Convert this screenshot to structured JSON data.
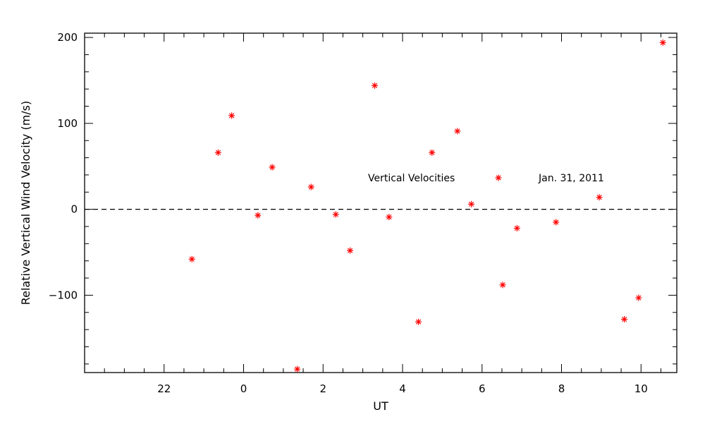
{
  "chart_data": {
    "type": "scatter",
    "title": "",
    "xlabel": "UT",
    "ylabel": "Relative Vertical Wind Velocity (m/s)",
    "xlim": [
      -2.0,
      12.9
    ],
    "ylim": [
      -190,
      205
    ],
    "x_ticks": [
      {
        "value": 0,
        "label": "22"
      },
      {
        "value": 2,
        "label": "0"
      },
      {
        "value": 4,
        "label": "2"
      },
      {
        "value": 6,
        "label": "4"
      },
      {
        "value": 8,
        "label": "6"
      },
      {
        "value": 10,
        "label": "8"
      },
      {
        "value": 12,
        "label": "10"
      }
    ],
    "y_ticks": [
      {
        "value": -100,
        "label": "−100"
      },
      {
        "value": 0,
        "label": "0"
      },
      {
        "value": 100,
        "label": "100"
      },
      {
        "value": 200,
        "label": "200"
      }
    ],
    "reference_line": {
      "y": 0,
      "style": "dashed"
    },
    "series": [
      {
        "name": "Vertical Velocities",
        "color": "#ff0000",
        "marker": "asterisk",
        "points": [
          {
            "x": 0.7,
            "y": -58
          },
          {
            "x": 1.36,
            "y": 66
          },
          {
            "x": 1.7,
            "y": 109
          },
          {
            "x": 2.36,
            "y": -7
          },
          {
            "x": 2.72,
            "y": 49
          },
          {
            "x": 3.35,
            "y": -186
          },
          {
            "x": 3.7,
            "y": 26
          },
          {
            "x": 4.32,
            "y": -6
          },
          {
            "x": 4.68,
            "y": -48
          },
          {
            "x": 5.3,
            "y": 144
          },
          {
            "x": 5.66,
            "y": -9
          },
          {
            "x": 6.4,
            "y": -131
          },
          {
            "x": 6.74,
            "y": 66
          },
          {
            "x": 7.38,
            "y": 91
          },
          {
            "x": 7.73,
            "y": 6
          },
          {
            "x": 8.52,
            "y": -88
          },
          {
            "x": 8.88,
            "y": -22
          },
          {
            "x": 9.86,
            "y": -15
          },
          {
            "x": 10.95,
            "y": 14
          },
          {
            "x": 11.58,
            "y": -128
          },
          {
            "x": 11.94,
            "y": -103
          },
          {
            "x": 12.55,
            "y": 194
          }
        ]
      }
    ],
    "legend": {
      "label": "Vertical Velocities",
      "date_text": "Jan. 31, 2011",
      "position": "center-right"
    },
    "grid": false
  }
}
